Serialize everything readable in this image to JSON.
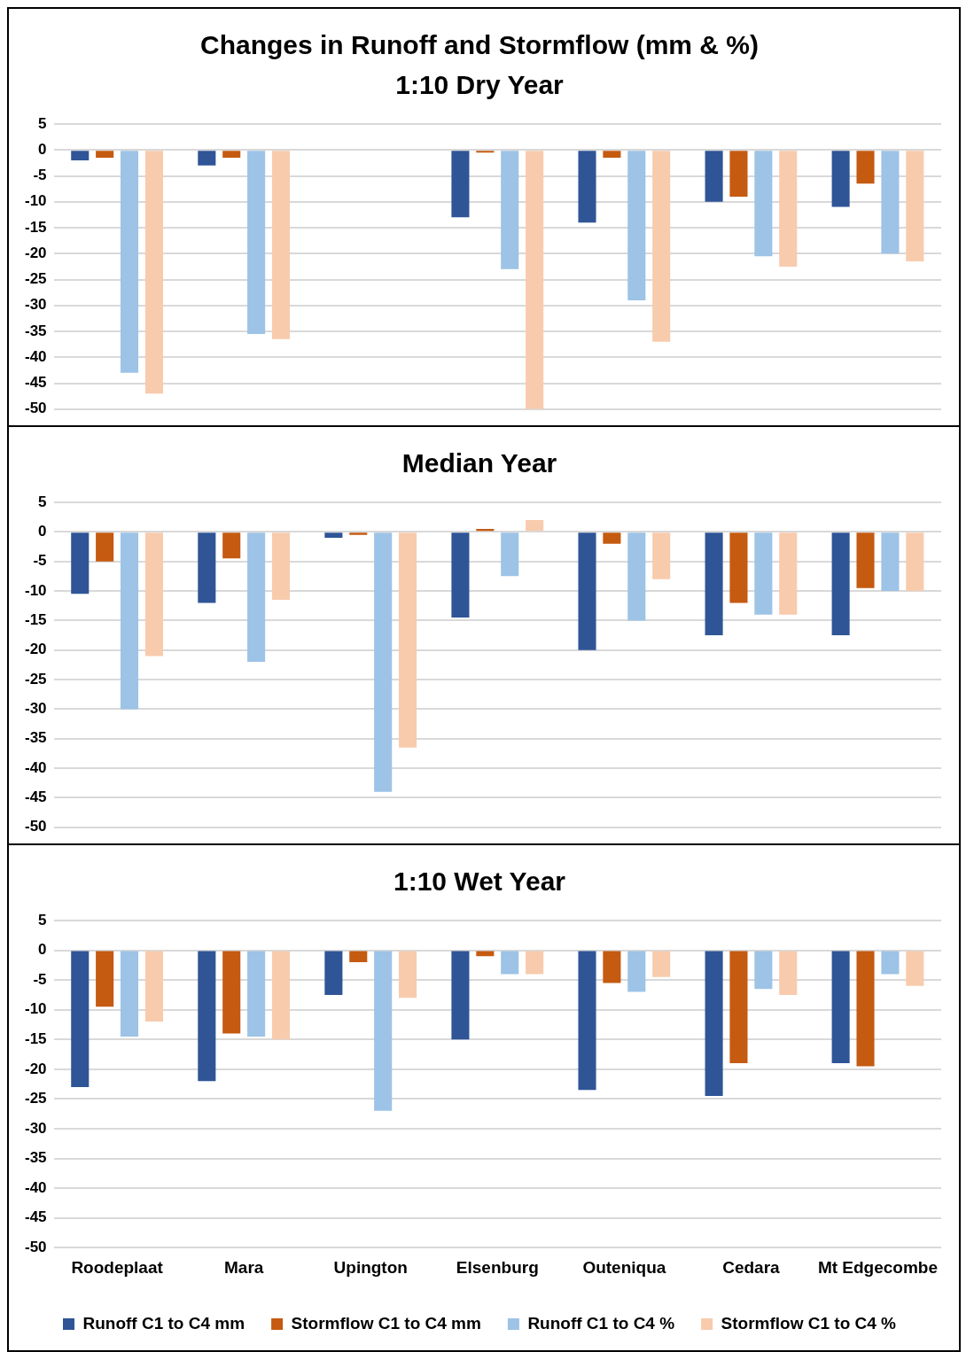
{
  "chart_data": [
    {
      "type": "bar",
      "title": "Changes in Runoff and Stormflow (mm & %)",
      "subtitle": "1:10 Dry Year",
      "categories": [
        null,
        null,
        null,
        null,
        null,
        null,
        null
      ],
      "series": [
        {
          "color": "#2f5597",
          "values": [
            -2,
            -3,
            null,
            -13,
            -14,
            -10,
            -11
          ]
        },
        {
          "color": "#c55a11",
          "values": [
            -1.5,
            -1.5,
            null,
            -0.5,
            -1.5,
            -9,
            -6.5
          ]
        },
        {
          "color": "#9dc3e6",
          "values": [
            -43,
            -35.5,
            null,
            -23,
            -29,
            -20.5,
            -20
          ]
        },
        {
          "color": "#f8cbad",
          "values": [
            -47,
            -36.5,
            null,
            -50,
            -37,
            -22.5,
            -21.5
          ]
        }
      ],
      "ylim": [
        -50,
        5
      ],
      "yticks": [
        -50,
        -45,
        -40,
        -35,
        -30,
        -25,
        -20,
        -15,
        -10,
        -5,
        0,
        5
      ],
      "grid": "y",
      "legend": false,
      "tick_labels": "y"
    },
    {
      "type": "bar",
      "title": "Median Year",
      "categories": [
        null,
        null,
        null,
        null,
        null,
        null,
        null
      ],
      "series": [
        {
          "color": "#2f5597",
          "values": [
            -10.5,
            -12,
            -1,
            -14.5,
            -20,
            -17.5,
            -17.5
          ]
        },
        {
          "color": "#c55a11",
          "values": [
            -5,
            -4.5,
            -0.5,
            0.5,
            -2,
            -12,
            -9.5
          ]
        },
        {
          "color": "#9dc3e6",
          "values": [
            -30,
            -22,
            -44,
            -7.5,
            -15,
            -14,
            -10
          ]
        },
        {
          "color": "#f8cbad",
          "values": [
            -21,
            -11.5,
            -36.5,
            2,
            -8,
            -14,
            -10
          ]
        }
      ],
      "ylim": [
        -50,
        5
      ],
      "yticks": [
        -50,
        -45,
        -40,
        -35,
        -30,
        -25,
        -20,
        -15,
        -10,
        -5,
        0,
        5
      ],
      "grid": "y",
      "legend": false,
      "tick_labels": "y"
    },
    {
      "type": "bar",
      "title": "1:10 Wet Year",
      "categories": [
        "Roodeplaat",
        "Mara",
        "Upington",
        "Elsenburg",
        "Outeniqua",
        "Cedara",
        "Mt Edgecombe"
      ],
      "series": [
        {
          "name": "Runoff C1 to C4 mm",
          "color": "#2f5597",
          "values": [
            -23,
            -22,
            -7.5,
            -15,
            -23.5,
            -24.5,
            -19
          ]
        },
        {
          "name": "Stormflow C1 to C4 mm",
          "color": "#c55a11",
          "values": [
            -9.5,
            -14,
            -2,
            -1,
            -5.5,
            -19,
            -19.5
          ]
        },
        {
          "name": "Runoff C1 to C4 %",
          "color": "#9dc3e6",
          "values": [
            -14.5,
            -14.5,
            -27,
            -4,
            -7,
            -6.5,
            -4
          ]
        },
        {
          "name": "Stormflow C1 to C4 %",
          "color": "#f8cbad",
          "values": [
            -12,
            -15,
            -8,
            -4,
            -4.5,
            -7.5,
            -6
          ]
        }
      ],
      "ylim": [
        -50,
        5
      ],
      "yticks": [
        -50,
        -45,
        -40,
        -35,
        -30,
        -25,
        -20,
        -15,
        -10,
        -5,
        0,
        5
      ],
      "grid": "y",
      "legend": "bottom"
    }
  ]
}
